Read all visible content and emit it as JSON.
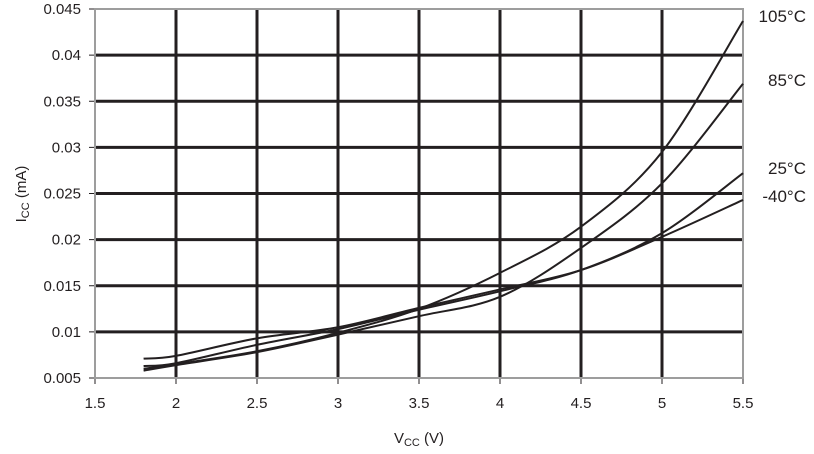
{
  "chart_data": {
    "type": "line",
    "title": "",
    "xlabel": {
      "main": "V",
      "sub": "CC",
      "unit": " (V)"
    },
    "ylabel": {
      "main": "I",
      "sub": "CC",
      "unit": " (mA)"
    },
    "xlim": [
      1.5,
      5.5
    ],
    "ylim": [
      0.005,
      0.045
    ],
    "xticks": [
      "1.5",
      "2",
      "2.5",
      "3",
      "3.5",
      "4",
      "4.5",
      "5",
      "5.5"
    ],
    "yticks": [
      "0.005",
      "0.01",
      "0.015",
      "0.02",
      "0.025",
      "0.03",
      "0.035",
      "0.04",
      "0.045"
    ],
    "grid": true,
    "legend": "inline-right",
    "line_color": "#231f20",
    "grid_color": "#231f20",
    "x": [
      1.8,
      2.0,
      2.5,
      3.0,
      3.5,
      4.0,
      4.5,
      5.0,
      5.5
    ],
    "series": [
      {
        "name": "105°C",
        "values": [
          0.006,
          0.0065,
          0.0079,
          0.0099,
          0.0125,
          0.0164,
          0.0214,
          0.0295,
          0.0437
        ]
      },
      {
        "name": "85°C",
        "values": [
          0.0058,
          0.0064,
          0.0078,
          0.0097,
          0.0117,
          0.0138,
          0.0191,
          0.0261,
          0.0369
        ]
      },
      {
        "name": "25°C",
        "values": [
          0.0063,
          0.0066,
          0.0086,
          0.0103,
          0.0124,
          0.0144,
          0.0167,
          0.0207,
          0.0272
        ]
      },
      {
        "name": "-40°C",
        "values": [
          0.0071,
          0.0074,
          0.0093,
          0.0105,
          0.0126,
          0.0146,
          0.0167,
          0.0203,
          0.0243
        ]
      }
    ]
  }
}
